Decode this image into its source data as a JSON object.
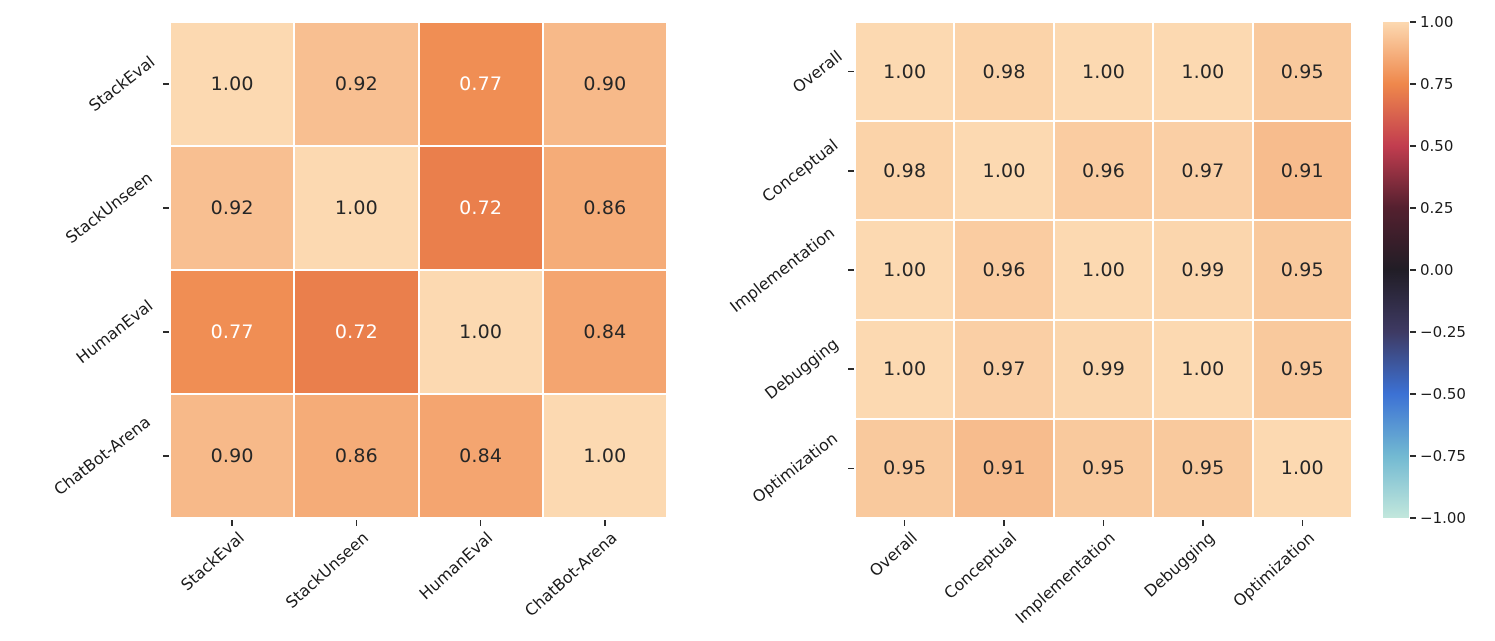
{
  "figure": {
    "background": "#ffffff"
  },
  "colors": {
    "annot_dark": "#262626",
    "annot_light": "#ffffff",
    "grid_line": "#ffffff",
    "tick_mark": "#2b2b2b",
    "label_text": "#1a1a1a"
  },
  "colormap": {
    "name": "icefire",
    "stops": [
      [
        0.0,
        "#c2e7dc"
      ],
      [
        0.125,
        "#72b9d2"
      ],
      [
        0.25,
        "#3c71d4"
      ],
      [
        0.375,
        "#3e3a63"
      ],
      [
        0.5,
        "#211d26"
      ],
      [
        0.625,
        "#54202f"
      ],
      [
        0.75,
        "#c23d4f"
      ],
      [
        0.875,
        "#ef884c"
      ],
      [
        1.0,
        "#fcd9b1"
      ]
    ]
  },
  "chart_data": [
    {
      "type": "heatmap",
      "name": "benchmark-correlation-matrix",
      "title": "",
      "xlabel": "",
      "ylabel": "",
      "categories": [
        "StackEval",
        "StackUnseen",
        "HumanEval",
        "ChatBot-Arena"
      ],
      "matrix": [
        [
          1.0,
          0.92,
          0.77,
          0.9
        ],
        [
          0.92,
          1.0,
          0.72,
          0.86
        ],
        [
          0.77,
          0.72,
          1.0,
          0.84
        ],
        [
          0.9,
          0.86,
          0.84,
          1.0
        ]
      ],
      "vmin": -1.0,
      "vmax": 1.0,
      "annotation_decimals": 2
    },
    {
      "type": "heatmap",
      "name": "category-correlation-matrix",
      "title": "",
      "xlabel": "",
      "ylabel": "",
      "categories": [
        "Overall",
        "Conceptual",
        "Implementation",
        "Debugging",
        "Optimization"
      ],
      "matrix": [
        [
          1.0,
          0.98,
          1.0,
          1.0,
          0.95
        ],
        [
          0.98,
          1.0,
          0.96,
          0.97,
          0.91
        ],
        [
          1.0,
          0.96,
          1.0,
          0.99,
          0.95
        ],
        [
          1.0,
          0.97,
          0.99,
          1.0,
          0.95
        ],
        [
          0.95,
          0.91,
          0.95,
          0.95,
          1.0
        ]
      ],
      "vmin": -1.0,
      "vmax": 1.0,
      "annotation_decimals": 2
    }
  ],
  "colorbar": {
    "vmin": -1.0,
    "vmax": 1.0,
    "tick_values": [
      1.0,
      0.75,
      0.5,
      0.25,
      0.0,
      -0.25,
      -0.5,
      -0.75,
      -1.0
    ],
    "tick_labels": [
      "1.00",
      "0.75",
      "0.50",
      "0.25",
      "0.00",
      "−0.25",
      "−0.50",
      "−0.75",
      "−1.00"
    ]
  }
}
